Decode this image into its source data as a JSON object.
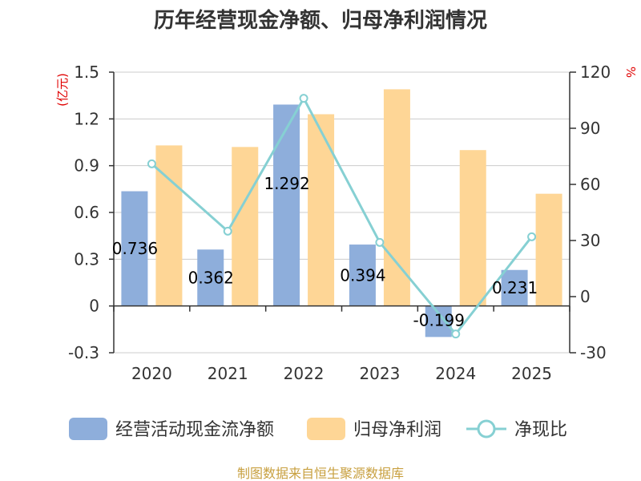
{
  "title": "历年经营现金净额、归母净利润情况",
  "source": "制图数据来自恒生聚源数据库",
  "units": {
    "left": "(亿元)",
    "right": "%"
  },
  "colors": {
    "series1": "#8eaedb",
    "series2": "#fed696",
    "series3": "#86d0d3"
  },
  "chart_data": {
    "type": "bar",
    "categories": [
      "2020",
      "2021",
      "2022",
      "2023",
      "2024",
      "2025"
    ],
    "series": [
      {
        "name": "经营活动现金流净额",
        "type": "bar",
        "axis": "left",
        "values": [
          0.736,
          0.362,
          1.292,
          0.394,
          -0.199,
          0.231
        ]
      },
      {
        "name": "归母净利润",
        "type": "bar",
        "axis": "left",
        "values": [
          1.03,
          1.02,
          1.23,
          1.39,
          1.0,
          0.72
        ]
      },
      {
        "name": "净现比",
        "type": "line",
        "axis": "right",
        "values": [
          71,
          35,
          106,
          29,
          -20,
          32
        ]
      }
    ],
    "data_labels": [
      "0.736",
      "0.362",
      "1.292",
      "0.394",
      "-0.199",
      "0.231"
    ],
    "y_left": {
      "min": -0.3,
      "max": 1.5,
      "ticks": [
        "1.5",
        "1.2",
        "0.9",
        "0.6",
        "0.3",
        "0",
        "-0.3"
      ]
    },
    "y_right": {
      "min": -30,
      "max": 120,
      "ticks": [
        "120",
        "90",
        "60",
        "30",
        "0",
        "-30"
      ]
    },
    "grid": true,
    "legend": "bottom"
  }
}
